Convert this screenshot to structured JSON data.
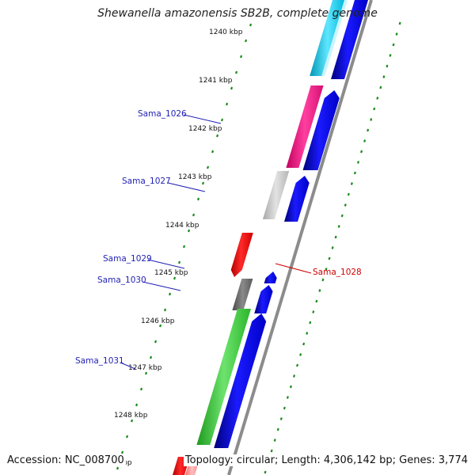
{
  "title": "Shewanella amazonensis SB2B, complete genome",
  "accession": "Accession: NC_008700",
  "summary": "Topology: circular; Length: 4,306,142 bp; Genes: 3,774",
  "colors": {
    "backbone": "#8c8c8c",
    "forward_cds": "#0000ee",
    "reverse_cds": "#ff0000",
    "gene_label_forward": "#1f1fb4",
    "gene_label_reverse": "#cc0000",
    "gc_skew_dots": "#1a8c1a"
  },
  "ruler_ticks": [
    {
      "label": "1240 kbp"
    },
    {
      "label": "1241 kbp"
    },
    {
      "label": "1242 kbp"
    },
    {
      "label": "1243 kbp"
    },
    {
      "label": "1244 kbp"
    },
    {
      "label": "1245 kbp"
    },
    {
      "label": "1246 kbp"
    },
    {
      "label": "1247 kbp"
    },
    {
      "label": "1248 kbp"
    },
    {
      "label": "kbp"
    }
  ],
  "gene_labels": [
    {
      "name": "Sama_1026",
      "strand": "forward"
    },
    {
      "name": "Sama_1027",
      "strand": "forward"
    },
    {
      "name": "Sama_1028",
      "strand": "reverse"
    },
    {
      "name": "Sama_1029",
      "strand": "forward"
    },
    {
      "name": "Sama_1030",
      "strand": "forward"
    },
    {
      "name": "Sama_1031",
      "strand": "forward"
    }
  ]
}
